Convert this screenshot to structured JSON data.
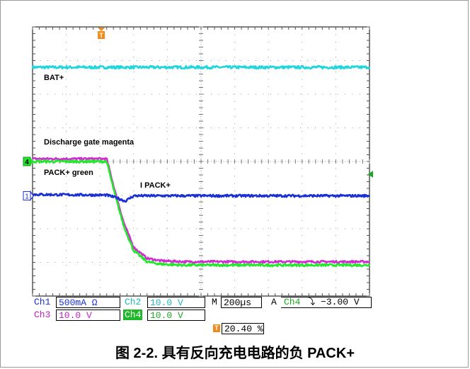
{
  "caption": "图 2-2. 具有反向充电电路的负 PACK+",
  "labels": {
    "bat": "BAT+",
    "discharge": "Discharge gate magenta",
    "pack": "PACK+ green",
    "ipack": "I PACK+"
  },
  "markers": {
    "ch4": "4",
    "ch1": "1",
    "trigger": "T"
  },
  "readouts": {
    "ch1_name": "Ch1",
    "ch1_scale": "500mA Ω",
    "ch2_name": "Ch2",
    "ch2_scale": "10.0 V",
    "ch3_name": "Ch3",
    "ch3_scale": "10.0 V",
    "ch4_name": "Ch4",
    "ch4_scale": "10.0 V",
    "m_label": "M",
    "timebase": "200µs",
    "a_label": "A",
    "trig_source": "Ch4",
    "trig_slope": "⤵",
    "trig_level": "−3.00 V",
    "trig_pos": "20.40 %"
  },
  "colors": {
    "ch1": "#1a2fd6",
    "ch2": "#1fd6de",
    "ch3": "#d42ad4",
    "ch4": "#21e82a",
    "trigger": "#f08a1a",
    "grid": "#999999"
  },
  "chart_data": {
    "type": "line",
    "grid": true,
    "divisions": {
      "horizontal": 10,
      "vertical": 8
    },
    "x_unit": "div",
    "y_unit": "div",
    "series": [
      {
        "channel": "Ch2",
        "x": [
          0,
          10
        ],
        "y": [
          6.8,
          6.8
        ]
      },
      {
        "channel": "Ch3",
        "x": [
          0,
          2.2,
          2.45,
          2.7,
          3.0,
          3.4,
          3.8,
          4.5,
          10
        ],
        "y": [
          4.08,
          4.08,
          3.1,
          2.2,
          1.45,
          1.12,
          1.05,
          1.02,
          1.02
        ]
      },
      {
        "channel": "Ch4",
        "x": [
          0,
          2.2,
          2.45,
          2.7,
          3.0,
          3.4,
          3.8,
          4.5,
          10
        ],
        "y": [
          4.0,
          4.0,
          3.0,
          2.1,
          1.35,
          1.02,
          0.95,
          0.92,
          0.92
        ]
      },
      {
        "channel": "Ch1",
        "x": [
          0,
          2.2,
          2.5,
          2.75,
          3.0,
          10
        ],
        "y": [
          3.02,
          3.0,
          2.92,
          2.82,
          2.98,
          2.98
        ]
      }
    ]
  }
}
